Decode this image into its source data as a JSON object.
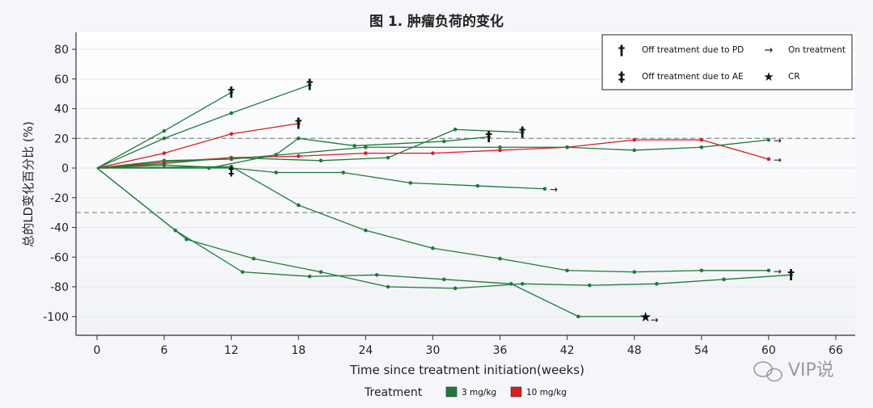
{
  "chart_data": {
    "type": "line",
    "title": "图 1. 肿瘤负荷的变化",
    "xlabel": "Time since treatment initiation(weeks)",
    "ylabel": "总的LD变化百分比 (%)",
    "xlim": [
      -3,
      67
    ],
    "ylim": [
      -112,
      92
    ],
    "xticks": [
      0,
      6,
      12,
      18,
      24,
      30,
      36,
      42,
      48,
      54,
      60,
      66
    ],
    "yticks": [
      80,
      60,
      40,
      20,
      0,
      -20,
      -40,
      -60,
      -80,
      -100
    ],
    "reference_lines": [
      20,
      -30
    ],
    "colors": {
      "3 mg/kg": "#1f7a3a",
      "10 mg/kg": "#d81e1e"
    },
    "series": [
      {
        "name": "3 mg/kg",
        "points": [
          [
            0,
            0
          ],
          [
            6,
            25
          ],
          [
            12,
            51
          ]
        ],
        "end": "dagger"
      },
      {
        "name": "3 mg/kg",
        "points": [
          [
            0,
            0
          ],
          [
            6,
            20
          ],
          [
            12,
            37
          ],
          [
            19,
            56
          ]
        ],
        "end": "dagger"
      },
      {
        "name": "10 mg/kg",
        "points": [
          [
            0,
            0
          ],
          [
            6,
            10
          ],
          [
            12,
            23
          ],
          [
            18,
            30
          ]
        ],
        "end": "dagger"
      },
      {
        "name": "3 mg/kg",
        "points": [
          [
            0,
            0
          ],
          [
            6,
            3
          ],
          [
            12,
            7
          ],
          [
            20,
            5
          ],
          [
            26,
            7
          ],
          [
            32,
            26
          ],
          [
            38,
            24
          ]
        ],
        "end": "dagger"
      },
      {
        "name": "3 mg/kg",
        "points": [
          [
            0,
            0
          ],
          [
            10,
            0
          ],
          [
            16,
            9
          ],
          [
            18,
            20
          ],
          [
            23,
            15
          ],
          [
            31,
            18
          ],
          [
            35,
            21
          ]
        ],
        "end": "dagger"
      },
      {
        "name": "3 mg/kg",
        "points": [
          [
            0,
            0
          ],
          [
            6,
            2
          ],
          [
            12,
            0
          ],
          [
            16,
            -3
          ],
          [
            22,
            -3
          ],
          [
            28,
            -10
          ],
          [
            34,
            -12
          ],
          [
            40,
            -14
          ]
        ],
        "end": "arrow"
      },
      {
        "name": "3 mg/kg",
        "points": [
          [
            0,
            0
          ],
          [
            12,
            1
          ],
          [
            18,
            -25
          ],
          [
            24,
            -42
          ],
          [
            30,
            -54
          ],
          [
            36,
            -61
          ],
          [
            42,
            -69
          ],
          [
            48,
            -70
          ],
          [
            54,
            -69
          ],
          [
            60,
            -69
          ]
        ],
        "end": "arrow"
      },
      {
        "name": "3 mg/kg",
        "points": [
          [
            0,
            0
          ],
          [
            7,
            -42
          ],
          [
            13,
            -70
          ],
          [
            19,
            -73
          ],
          [
            25,
            -72
          ],
          [
            31,
            -75
          ],
          [
            37,
            -78
          ],
          [
            43,
            -100
          ],
          [
            49,
            -100
          ]
        ],
        "end": "star-arrow"
      },
      {
        "name": "3 mg/kg",
        "points": [
          [
            0,
            0
          ],
          [
            8,
            -48
          ],
          [
            14,
            -61
          ],
          [
            20,
            -70
          ],
          [
            26,
            -80
          ],
          [
            32,
            -81
          ],
          [
            38,
            -78
          ],
          [
            44,
            -79
          ],
          [
            50,
            -78
          ],
          [
            56,
            -75
          ],
          [
            62,
            -72
          ]
        ],
        "end": "dagger"
      },
      {
        "name": "10 mg/kg",
        "points": [
          [
            0,
            0
          ],
          [
            6,
            4
          ],
          [
            12,
            7
          ],
          [
            18,
            8
          ],
          [
            24,
            10
          ],
          [
            30,
            10
          ],
          [
            36,
            12
          ],
          [
            42,
            14
          ],
          [
            48,
            19
          ],
          [
            54,
            19
          ],
          [
            60,
            6
          ]
        ],
        "end": "arrow"
      },
      {
        "name": "3 mg/kg",
        "points": [
          [
            0,
            0
          ],
          [
            6,
            5
          ],
          [
            12,
            6
          ],
          [
            24,
            14
          ],
          [
            36,
            14
          ],
          [
            42,
            14
          ],
          [
            48,
            12
          ],
          [
            54,
            14
          ],
          [
            60,
            19
          ]
        ],
        "end": "arrow"
      },
      {
        "name": "3 mg/kg",
        "points": [
          [
            0,
            0
          ],
          [
            12,
            0
          ]
        ],
        "end": "double-dagger"
      }
    ]
  },
  "legend": {
    "pd_symbol": "†",
    "pd_label": "Off treatment due to PD",
    "on_symbol": "→",
    "on_label": "On treatment",
    "ae_symbol": "‡",
    "ae_label": "Off treatment due to AE",
    "cr_symbol": "★",
    "cr_label": "CR",
    "treatment_title": "Treatment",
    "treatment_low": "3 mg/kg",
    "treatment_high": "10 mg/kg"
  },
  "watermark": "VIP说"
}
